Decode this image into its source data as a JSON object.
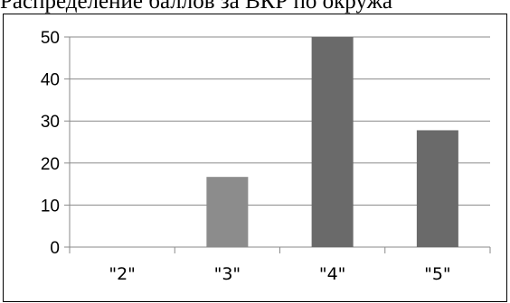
{
  "chart_data": {
    "type": "bar",
    "title": "Распределение баллов за ВКР по окружа",
    "xlabel": "",
    "ylabel": "",
    "categories": [
      "\"2\"",
      "\"3\"",
      "\"4\"",
      "\"5\""
    ],
    "values": [
      0,
      16.7,
      50,
      27.8
    ],
    "bar_colors": [
      "#8c8c8c",
      "#8c8c8c",
      "#6a6a6a",
      "#6a6a6a"
    ],
    "ylim": [
      0,
      50
    ],
    "yticks": [
      0,
      10,
      20,
      30,
      40,
      50
    ],
    "grid": true,
    "legend": "none"
  }
}
